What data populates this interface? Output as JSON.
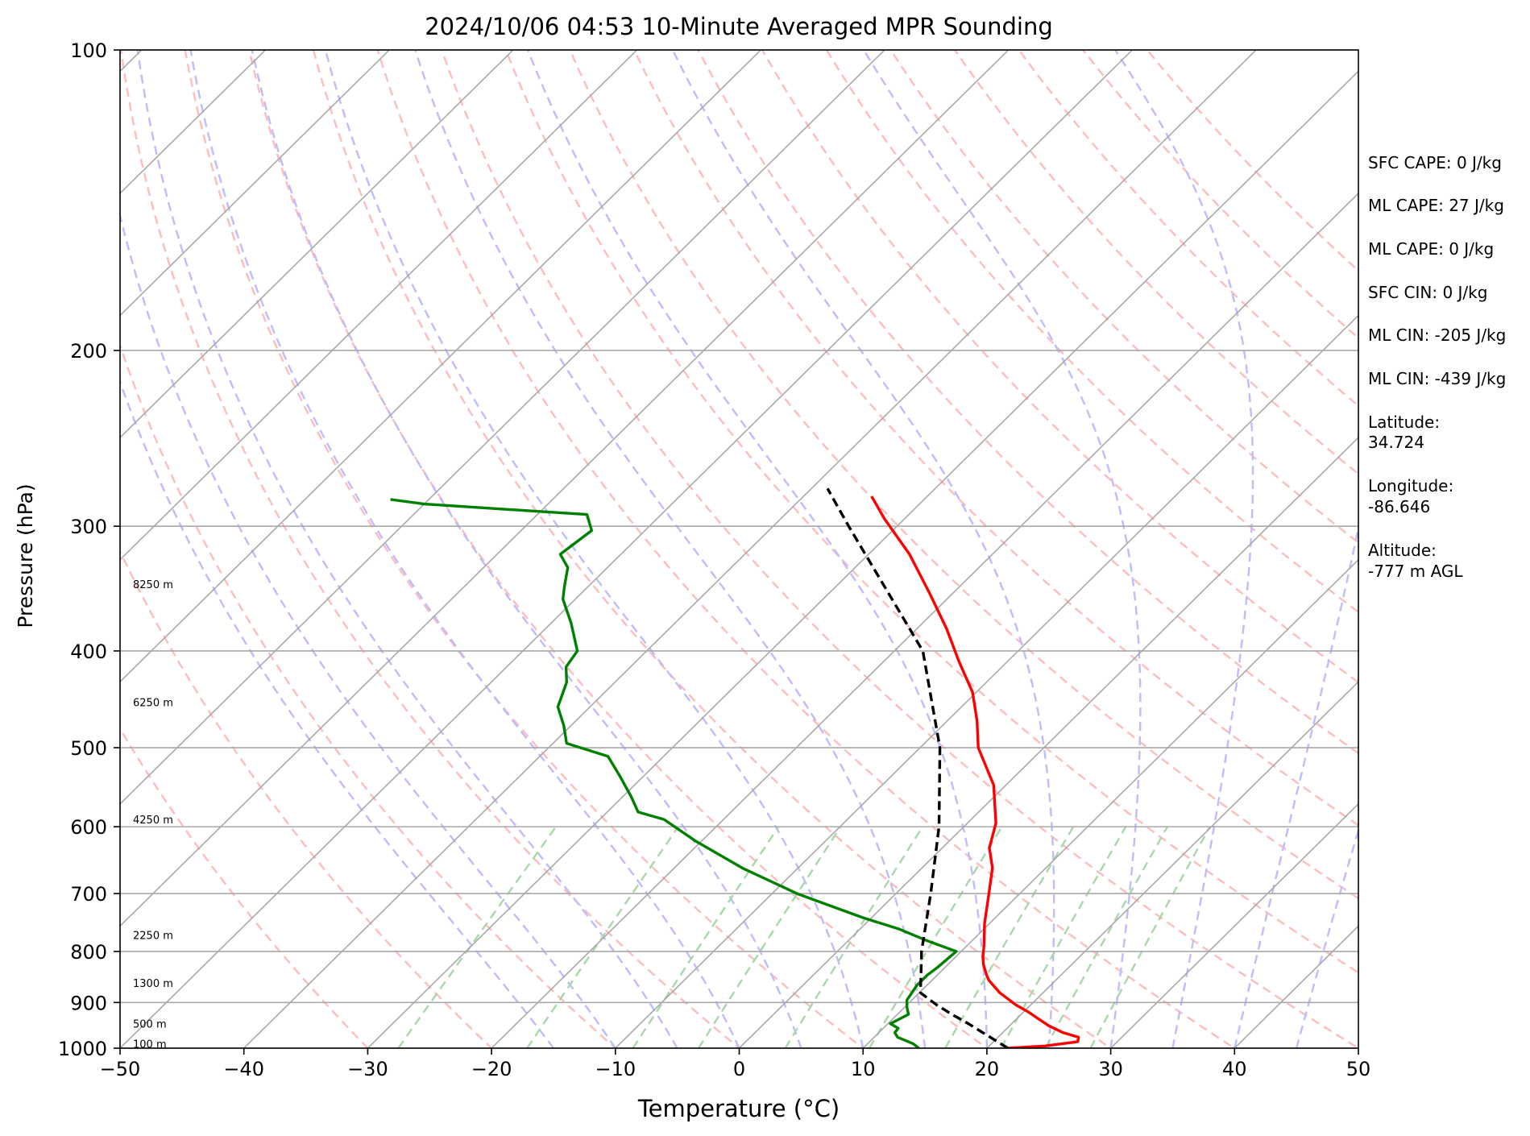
{
  "chart_data": {
    "type": "line",
    "title": "2024/10/06 04:53 10-Minute Averaged MPR Sounding",
    "xlabel": "Temperature (°C)",
    "ylabel": "Pressure (hPa)",
    "xlim": [
      -50,
      50
    ],
    "ylim": [
      1000,
      100
    ],
    "y_scale": "log",
    "skew": "skew-T log-P",
    "grid": true,
    "x_ticks": [
      "−50",
      "−40",
      "−30",
      "−20",
      "−10",
      "0",
      "10",
      "20",
      "30",
      "40",
      "50"
    ],
    "y_ticks": [
      "100",
      "200",
      "300",
      "400",
      "500",
      "600",
      "700",
      "800",
      "900",
      "1000"
    ],
    "x_tick_values": [
      -50,
      -40,
      -30,
      -20,
      -10,
      0,
      10,
      20,
      30,
      40,
      50
    ],
    "y_tick_values": [
      100,
      200,
      300,
      400,
      500,
      600,
      700,
      800,
      900,
      1000
    ],
    "height_labels": [
      {
        "text": "100 m",
        "pressure": 990
      },
      {
        "text": "500 m",
        "pressure": 945
      },
      {
        "text": "1300 m",
        "pressure": 860
      },
      {
        "text": "2250 m",
        "pressure": 770
      },
      {
        "text": "4250 m",
        "pressure": 590
      },
      {
        "text": "6250 m",
        "pressure": 450
      },
      {
        "text": "8250 m",
        "pressure": 343
      }
    ],
    "series": [
      {
        "key": "temperature",
        "color": "#ff0000",
        "style": "solid",
        "points": [
          [
            1000,
            21.7
          ],
          [
            995,
            24.5
          ],
          [
            985,
            26.8
          ],
          [
            975,
            26.5
          ],
          [
            965,
            24.9
          ],
          [
            950,
            23.2
          ],
          [
            935,
            21.8
          ],
          [
            920,
            20.4
          ],
          [
            905,
            18.8
          ],
          [
            880,
            16.5
          ],
          [
            855,
            14.6
          ],
          [
            845,
            14.0
          ],
          [
            825,
            12.9
          ],
          [
            810,
            12.2
          ],
          [
            790,
            11.4
          ],
          [
            750,
            9.6
          ],
          [
            700,
            7.5
          ],
          [
            660,
            5.7
          ],
          [
            630,
            3.8
          ],
          [
            595,
            2.3
          ],
          [
            545,
            -1.0
          ],
          [
            500,
            -5.3
          ],
          [
            470,
            -7.6
          ],
          [
            440,
            -10.3
          ],
          [
            410,
            -13.9
          ],
          [
            380,
            -17.6
          ],
          [
            350,
            -21.9
          ],
          [
            320,
            -26.7
          ],
          [
            295,
            -31.6
          ],
          [
            280,
            -34.5
          ]
        ]
      },
      {
        "key": "dewpoint",
        "color": "#008000",
        "style": "solid",
        "points": [
          [
            1000,
            14.5
          ],
          [
            990,
            13.7
          ],
          [
            975,
            11.9
          ],
          [
            965,
            11.3
          ],
          [
            955,
            11.2
          ],
          [
            945,
            10.2
          ],
          [
            925,
            10.9
          ],
          [
            910,
            10.2
          ],
          [
            895,
            9.6
          ],
          [
            865,
            9.2
          ],
          [
            845,
            9.2
          ],
          [
            830,
            9.4
          ],
          [
            815,
            9.5
          ],
          [
            800,
            9.6
          ],
          [
            780,
            6.3
          ],
          [
            760,
            3.2
          ],
          [
            740,
            -0.7
          ],
          [
            700,
            -8.0
          ],
          [
            680,
            -11.2
          ],
          [
            660,
            -14.5
          ],
          [
            620,
            -20.5
          ],
          [
            590,
            -24.8
          ],
          [
            580,
            -27.5
          ],
          [
            560,
            -29.3
          ],
          [
            535,
            -31.8
          ],
          [
            510,
            -34.5
          ],
          [
            495,
            -38.9
          ],
          [
            475,
            -40.6
          ],
          [
            455,
            -42.6
          ],
          [
            430,
            -43.9
          ],
          [
            415,
            -45.2
          ],
          [
            400,
            -45.6
          ],
          [
            390,
            -46.7
          ],
          [
            375,
            -48.4
          ],
          [
            355,
            -51.0
          ],
          [
            345,
            -51.9
          ],
          [
            330,
            -53.2
          ],
          [
            320,
            -54.9
          ],
          [
            303,
            -54.3
          ],
          [
            292,
            -56.0
          ],
          [
            285,
            -70.0
          ],
          [
            282,
            -73.1
          ]
        ]
      },
      {
        "key": "parcel",
        "color": "#000000",
        "style": "dashed",
        "points": [
          [
            1000,
            21.7
          ],
          [
            970,
            18.9
          ],
          [
            945,
            16.5
          ],
          [
            925,
            14.4
          ],
          [
            905,
            12.4
          ],
          [
            880,
            10.1
          ],
          [
            800,
            6.8
          ],
          [
            700,
            2.8
          ],
          [
            600,
            -2.0
          ],
          [
            500,
            -8.4
          ],
          [
            400,
            -17.7
          ],
          [
            300,
            -33.9
          ],
          [
            275,
            -38.7
          ]
        ]
      }
    ],
    "reference_lines": {
      "isotherms_c": [
        -130,
        -120,
        -110,
        -100,
        -90,
        -80,
        -70,
        -60,
        -50,
        -40,
        -30,
        -20,
        -10,
        0,
        10,
        20,
        30,
        40,
        50
      ],
      "dry_adiabats_c": [
        -30,
        -20,
        -10,
        0,
        10,
        20,
        30,
        40,
        50,
        60,
        70,
        80,
        90,
        100,
        110,
        120,
        130,
        140,
        150,
        160
      ],
      "moist_adiabats_c": [
        -15,
        -10,
        -5,
        0,
        5,
        10,
        15,
        20,
        25,
        30,
        35,
        40,
        45
      ],
      "mixing_ratios_gkg": [
        0.4,
        1,
        2,
        3,
        5,
        8,
        12,
        16,
        20,
        25
      ],
      "colors": {
        "isotherm": "#a9a9a9",
        "dry_adiabat": "#ffbcbc",
        "moist_adiabat": "#bcbcff",
        "mixing_ratio": "#a8d8a8",
        "isobar": "#a9a9a9"
      }
    }
  },
  "info_panel": [
    {
      "key": "sfc_cape",
      "text": "SFC CAPE: 0 J/kg"
    },
    {
      "key": "ml_cape_1",
      "text": "ML CAPE: 27 J/kg"
    },
    {
      "key": "ml_cape_2",
      "text": "ML CAPE: 0 J/kg"
    },
    {
      "key": "sfc_cin",
      "text": "SFC CIN: 0 J/kg"
    },
    {
      "key": "ml_cin_1",
      "text": "ML CIN: -205 J/kg"
    },
    {
      "key": "ml_cin_2",
      "text": "ML CIN: -439 J/kg"
    },
    {
      "key": "lat_label",
      "text": "Latitude:"
    },
    {
      "key": "lat_value",
      "text": "34.724"
    },
    {
      "key": "lon_label",
      "text": "Longitude:"
    },
    {
      "key": "lon_value",
      "text": "-86.646"
    },
    {
      "key": "alt_label",
      "text": "Altitude:"
    },
    {
      "key": "alt_value",
      "text": "-777 m AGL"
    }
  ]
}
